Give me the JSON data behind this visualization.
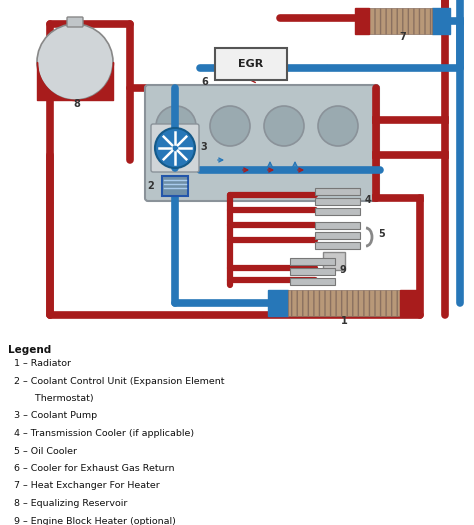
{
  "red": "#a81c1c",
  "blue": "#2777b8",
  "light_blue": "#5aaee0",
  "gray_engine": "#b8c4c8",
  "gray_engine_edge": "#8a9299",
  "gray_cyl": "#9aaab0",
  "white": "#ffffff",
  "black": "#000000",
  "egr_fill": "#f0f0f0",
  "hatch_color": "#8a7060",
  "hatch_fill": "#b89878",
  "legend": [
    "Legend",
    "1 – Radiator",
    "2 – Coolant Control Unit (Expansion Element\n        Thermostat)",
    "3 – Coolant Pump",
    "4 – Transmission Cooler (if applicable)",
    "5 – Oil Cooler",
    "6 – Cooler for Exhaust Gas Return",
    "7 – Heat Exchanger For Heater",
    "8 – Equalizing Reservoir",
    "9 – Engine Block Heater (optional)"
  ],
  "pipe_lw": 5.5,
  "arrow_size": 7
}
